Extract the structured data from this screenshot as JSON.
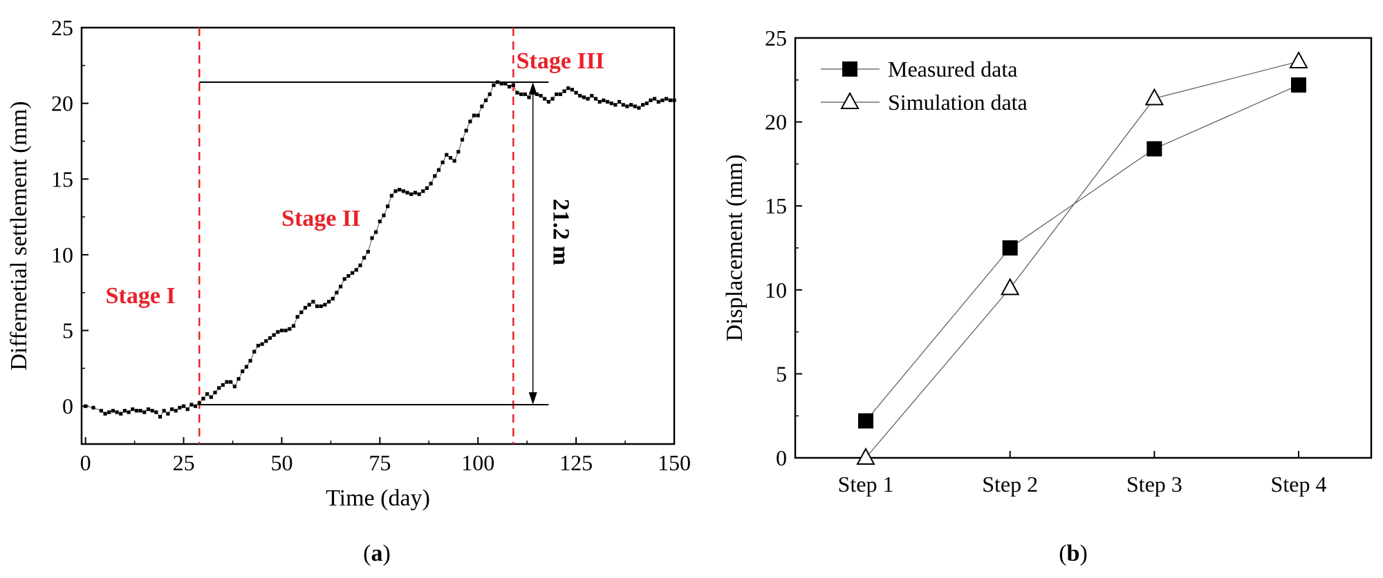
{
  "colors": {
    "stage": "#e8222a",
    "axis": "#000000",
    "series_line": "#555555"
  },
  "chart_data": [
    {
      "panel": "(a)",
      "panel_letter": "a",
      "type": "scatter",
      "xlabel": "Time (day)",
      "ylabel": "Differnetial settlement (mm)",
      "xlim": [
        -1,
        150
      ],
      "ylim": [
        -2.5,
        25
      ],
      "xticks": [
        0,
        25,
        50,
        75,
        100,
        125,
        150
      ],
      "yticks": [
        0,
        5,
        10,
        15,
        20,
        25
      ],
      "stage_lines_x": [
        29,
        109
      ],
      "stages": [
        {
          "label": "Stage I",
          "x": 14,
          "y": 6.8
        },
        {
          "label": "Stage II",
          "x": 60,
          "y": 11.9
        },
        {
          "label": "Stage III",
          "x": 121,
          "y": 22.3
        }
      ],
      "dimension": {
        "label": "21.2 m",
        "x": 114,
        "y_low": 0.1,
        "y_high": 21.4,
        "line_x_start": 29,
        "line_x_end": 118
      },
      "series": [
        {
          "name": "Differential settlement",
          "x": [
            0,
            2,
            4,
            5,
            6,
            7,
            8,
            9,
            10,
            11,
            12,
            13,
            14,
            15,
            16,
            17,
            18,
            19,
            20,
            21,
            22,
            23,
            24,
            25,
            26,
            27,
            28,
            29,
            30,
            31,
            32,
            33,
            34,
            35,
            36,
            37,
            38,
            39,
            40,
            41,
            42,
            43,
            44,
            45,
            46,
            47,
            48,
            49,
            50,
            51,
            52,
            53,
            54,
            55,
            56,
            57,
            58,
            59,
            60,
            61,
            62,
            63,
            64,
            65,
            66,
            67,
            68,
            69,
            70,
            71,
            72,
            73,
            74,
            75,
            76,
            77,
            78,
            79,
            80,
            81,
            82,
            83,
            84,
            85,
            86,
            87,
            88,
            89,
            90,
            91,
            92,
            93,
            94,
            95,
            96,
            97,
            98,
            99,
            100,
            101,
            102,
            103,
            104,
            105,
            106,
            107,
            108,
            109,
            110,
            111,
            112,
            113,
            114,
            115,
            116,
            117,
            118,
            119,
            120,
            121,
            122,
            123,
            124,
            125,
            126,
            127,
            128,
            129,
            130,
            131,
            132,
            133,
            134,
            135,
            136,
            137,
            138,
            139,
            140,
            141,
            142,
            143,
            144,
            145,
            146,
            147,
            148,
            149,
            150
          ],
          "values": [
            0,
            -0.1,
            -0.3,
            -0.5,
            -0.4,
            -0.3,
            -0.4,
            -0.5,
            -0.3,
            -0.4,
            -0.2,
            -0.3,
            -0.3,
            -0.4,
            -0.2,
            -0.3,
            -0.4,
            -0.7,
            -0.3,
            -0.5,
            -0.2,
            -0.3,
            -0.1,
            0.0,
            -0.2,
            0.1,
            0.0,
            0.2,
            0.5,
            0.8,
            0.6,
            0.9,
            1.2,
            1.4,
            1.6,
            1.6,
            1.3,
            1.8,
            2.3,
            2.6,
            3.0,
            3.6,
            4.0,
            4.1,
            4.3,
            4.5,
            4.7,
            4.9,
            5.0,
            5.0,
            5.1,
            5.3,
            5.9,
            6.2,
            6.5,
            6.7,
            6.9,
            6.6,
            6.6,
            6.7,
            6.9,
            7.1,
            7.5,
            7.9,
            8.4,
            8.6,
            8.8,
            9.0,
            9.3,
            9.8,
            10.2,
            11.1,
            11.5,
            12.2,
            12.6,
            13.2,
            13.9,
            14.2,
            14.3,
            14.2,
            14.1,
            14.0,
            14.1,
            14.0,
            14.2,
            14.4,
            14.7,
            15.2,
            15.6,
            16.1,
            16.6,
            16.4,
            16.2,
            16.8,
            17.6,
            18.2,
            18.8,
            19.2,
            19.2,
            19.8,
            20.2,
            20.6,
            21.2,
            21.4,
            21.3,
            21.3,
            21.1,
            21.2,
            20.7,
            20.6,
            20.6,
            20.4,
            20.7,
            20.6,
            20.5,
            20.3,
            20.1,
            20.3,
            20.6,
            20.6,
            20.8,
            21.0,
            20.9,
            20.7,
            20.5,
            20.4,
            20.3,
            20.5,
            20.3,
            20.1,
            20.2,
            20.1,
            20.0,
            19.9,
            20.1,
            19.9,
            19.8,
            19.9,
            19.8,
            19.7,
            19.9,
            20.0,
            20.2,
            20.3,
            20.1,
            20.2,
            20.3,
            20.2,
            20.2
          ]
        }
      ]
    },
    {
      "panel": "(b)",
      "panel_letter": "b",
      "type": "line",
      "xlabel": "",
      "ylabel": "Displacement (mm)",
      "categories": [
        "Step 1",
        "Step 2",
        "Step 3",
        "Step 4"
      ],
      "ylim": [
        0,
        25
      ],
      "yticks": [
        0,
        5,
        10,
        15,
        20,
        25
      ],
      "legend_position": "top-left",
      "series": [
        {
          "name": "Measured data",
          "marker": "filled-square",
          "values": [
            2.2,
            12.5,
            18.4,
            22.2
          ]
        },
        {
          "name": "Simulation data",
          "marker": "open-triangle",
          "values": [
            0.0,
            10.1,
            21.4,
            23.6
          ]
        }
      ]
    }
  ]
}
